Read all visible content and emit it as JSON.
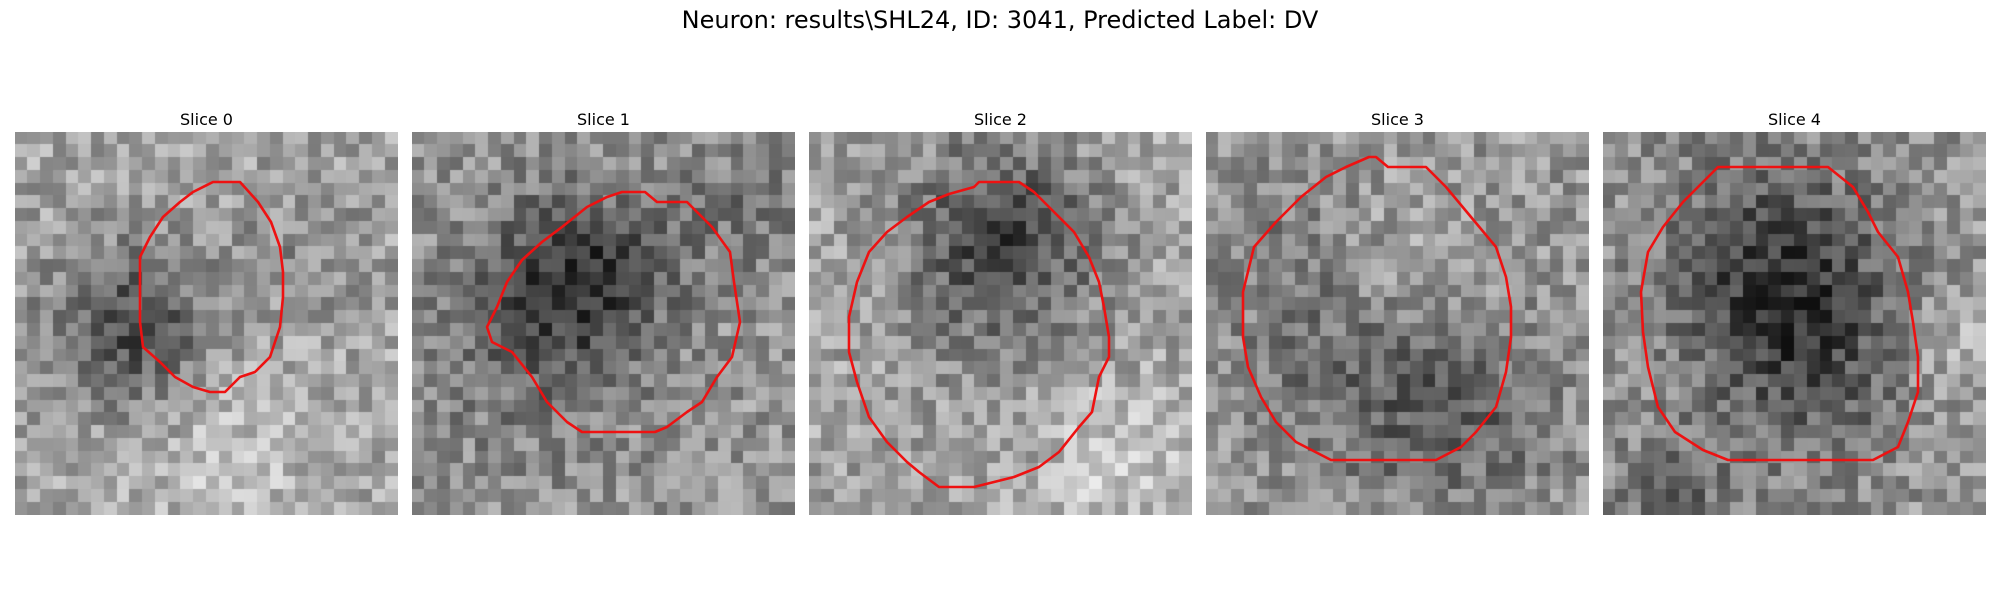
{
  "figure": {
    "title": "Neuron: results\\SHL24, ID: 3041, Predicted Label: DV"
  },
  "contour_color": "#ee1111",
  "image_style": "grayscale noisy microscopy slices with red segmentation contour",
  "slices": [
    {
      "title": "Slice 0"
    },
    {
      "title": "Slice 1"
    },
    {
      "title": "Slice 2"
    },
    {
      "title": "Slice 3"
    },
    {
      "title": "Slice 4"
    }
  ]
}
